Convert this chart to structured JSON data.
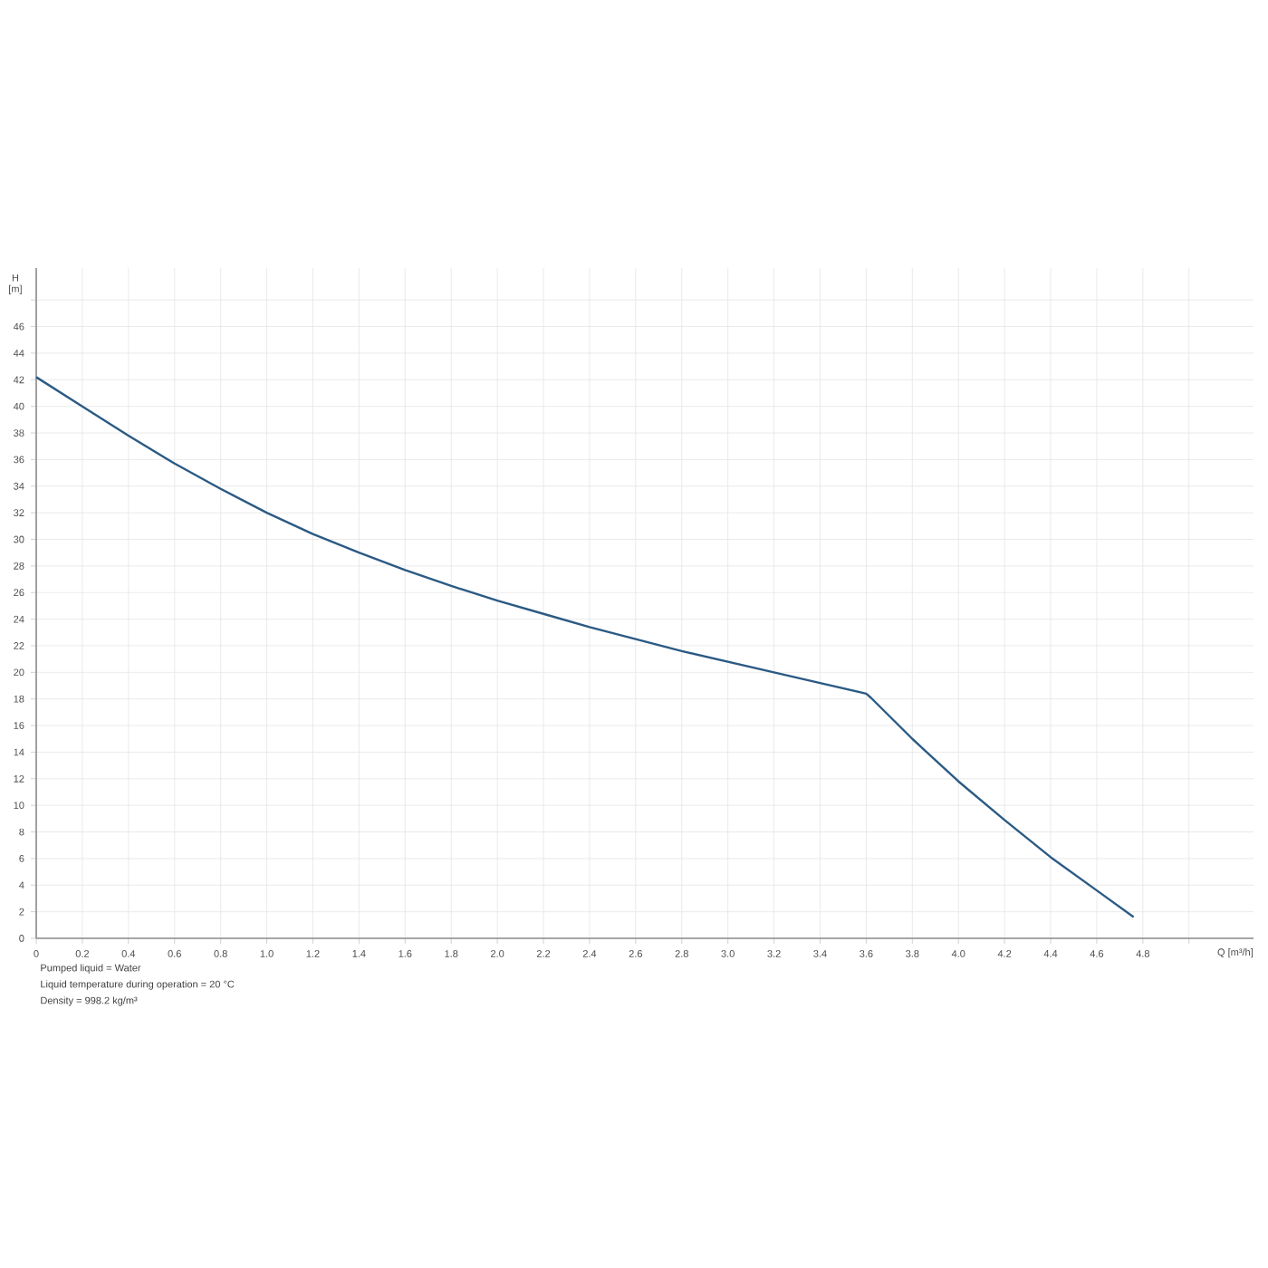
{
  "chart_data": {
    "type": "line",
    "xlabel": "Q [m³/h]",
    "ylabel": "H [m]",
    "x": [
      0,
      0.2,
      0.4,
      0.6,
      0.8,
      1.0,
      1.2,
      1.4,
      1.6,
      1.8,
      2.0,
      2.2,
      2.4,
      2.6,
      2.8,
      3.0,
      3.2,
      3.4,
      3.6,
      3.62,
      3.8,
      4.0,
      4.2,
      4.4,
      4.6,
      4.76
    ],
    "series": [
      {
        "color": "#2b5a84",
        "values": [
          42.2,
          40,
          37.8,
          35.7,
          33.8,
          32,
          30.4,
          29,
          27.7,
          26.5,
          25.4,
          24.4,
          23.4,
          22.5,
          21.6,
          20.8,
          20,
          19.2,
          18.4,
          18.1,
          15,
          11.8,
          8.9,
          6.1,
          3.6,
          1.6
        ]
      }
    ],
    "xlim": [
      0,
      5.28
    ],
    "ylim": [
      0,
      50.4
    ],
    "xticks": [
      {
        "value": 0,
        "label": "0"
      },
      {
        "value": 0.2,
        "label": "0.2"
      },
      {
        "value": 0.4,
        "label": "0.4"
      },
      {
        "value": 0.6,
        "label": "0.6"
      },
      {
        "value": 0.8,
        "label": "0.8"
      },
      {
        "value": 1.0,
        "label": "1.0"
      },
      {
        "value": 1.2,
        "label": "1.2"
      },
      {
        "value": 1.4,
        "label": "1.4"
      },
      {
        "value": 1.6,
        "label": "1.6"
      },
      {
        "value": 1.8,
        "label": "1.8"
      },
      {
        "value": 2.0,
        "label": "2.0"
      },
      {
        "value": 2.2,
        "label": "2.2"
      },
      {
        "value": 2.4,
        "label": "2.4"
      },
      {
        "value": 2.6,
        "label": "2.6"
      },
      {
        "value": 2.8,
        "label": "2.8"
      },
      {
        "value": 3.0,
        "label": "3.0"
      },
      {
        "value": 3.2,
        "label": "3.2"
      },
      {
        "value": 3.4,
        "label": "3.4"
      },
      {
        "value": 3.6,
        "label": "3.6"
      },
      {
        "value": 3.8,
        "label": "3.8"
      },
      {
        "value": 4.0,
        "label": "4.0"
      },
      {
        "value": 4.2,
        "label": "4.2"
      },
      {
        "value": 4.4,
        "label": "4.4"
      },
      {
        "value": 4.6,
        "label": "4.6"
      },
      {
        "value": 4.8,
        "label": "4.8"
      },
      {
        "value": 5.0,
        "label": null
      }
    ],
    "yticks": [
      0,
      2,
      4,
      6,
      8,
      10,
      12,
      14,
      16,
      18,
      20,
      22,
      24,
      26,
      28,
      30,
      32,
      34,
      36,
      38,
      40,
      42,
      44,
      46,
      {
        "value": 48,
        "label": null
      }
    ],
    "grid": true,
    "marker": "none",
    "line_style": "solid",
    "annotations": [
      "Pumped liquid = Water",
      "Liquid temperature during operation = 20 °C",
      "Density = 998.2 kg/m³"
    ]
  }
}
